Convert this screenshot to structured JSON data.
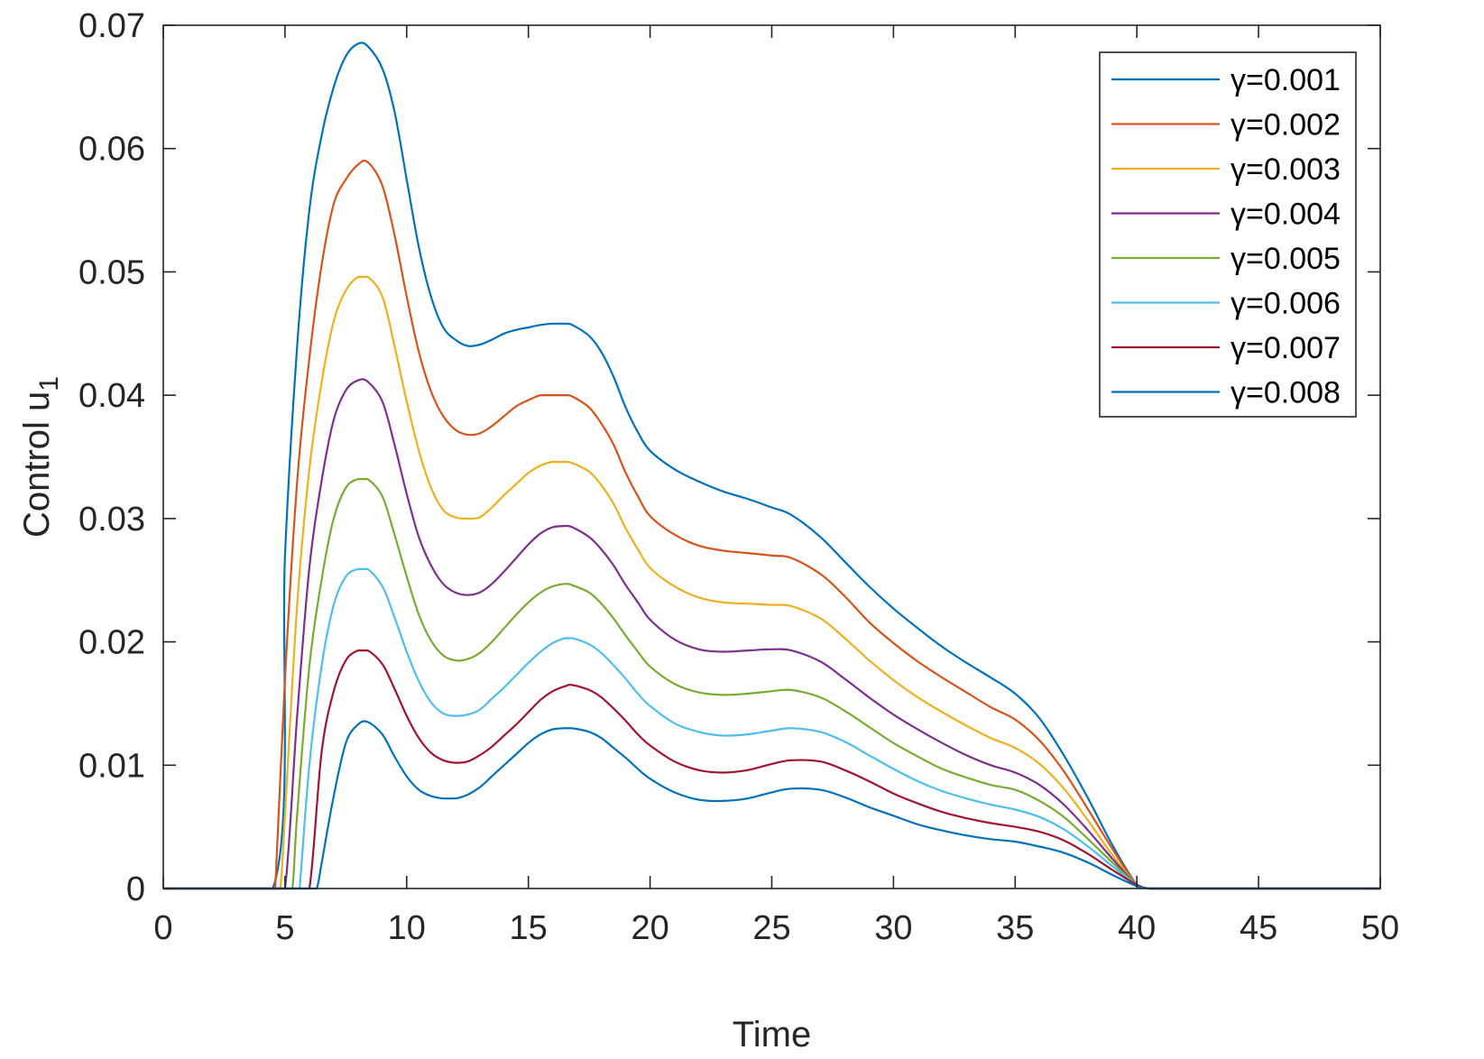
{
  "chart_data": {
    "type": "line",
    "title": "",
    "xlabel": "Time",
    "ylabel": "Control u",
    "ylabel_subscript": "1",
    "xlim": [
      0,
      50
    ],
    "ylim": [
      0,
      0.07
    ],
    "xticks": [
      0,
      5,
      10,
      15,
      20,
      25,
      30,
      35,
      40,
      45,
      50
    ],
    "xtick_labels": [
      "0",
      "5",
      "10",
      "15",
      "20",
      "25",
      "30",
      "35",
      "40",
      "45",
      "50"
    ],
    "yticks": [
      0,
      0.01,
      0.02,
      0.03,
      0.04,
      0.05,
      0.06,
      0.07
    ],
    "ytick_labels": [
      "0",
      "0.01",
      "0.02",
      "0.03",
      "0.04",
      "0.05",
      "0.06",
      "0.07"
    ],
    "grid": false,
    "legend_position": "top-right",
    "x": [
      0,
      4.5,
      5,
      5.5,
      6,
      6.5,
      7,
      7.5,
      8,
      8.4,
      9,
      9.5,
      10,
      10.5,
      11,
      11.5,
      12,
      12.5,
      13,
      13.5,
      14,
      14.5,
      15,
      15.5,
      16,
      16.5,
      16.8,
      17.5,
      18,
      18.5,
      19,
      19.5,
      20,
      21,
      22,
      23,
      24,
      25,
      25.8,
      27,
      28,
      29,
      30,
      31,
      32,
      33,
      34,
      35,
      36,
      37,
      38,
      39,
      40,
      40.5,
      41,
      45,
      50
    ],
    "series": [
      {
        "name": "γ=0.001",
        "color": "#0072BD",
        "start": 4.5,
        "values": [
          0,
          0,
          0.027,
          0.044,
          0.055,
          0.061,
          0.065,
          0.0675,
          0.0685,
          0.0683,
          0.0665,
          0.063,
          0.0575,
          0.052,
          0.048,
          0.0455,
          0.0445,
          0.044,
          0.0441,
          0.0445,
          0.045,
          0.0453,
          0.0455,
          0.0457,
          0.0458,
          0.0458,
          0.0457,
          0.0448,
          0.0435,
          0.0415,
          0.039,
          0.037,
          0.0355,
          0.034,
          0.033,
          0.0322,
          0.0316,
          0.0309,
          0.0303,
          0.0285,
          0.0265,
          0.0245,
          0.0227,
          0.0211,
          0.0196,
          0.0183,
          0.0171,
          0.0158,
          0.0138,
          0.0108,
          0.0073,
          0.0035,
          0.0003,
          0,
          0,
          0,
          0
        ]
      },
      {
        "name": "γ=0.002",
        "color": "#D95319",
        "start": 4.6,
        "values": [
          0,
          0,
          0.017,
          0.033,
          0.043,
          0.0505,
          0.0555,
          0.0575,
          0.0587,
          0.0589,
          0.057,
          0.053,
          0.048,
          0.0435,
          0.0403,
          0.0383,
          0.0372,
          0.0368,
          0.0369,
          0.0375,
          0.0383,
          0.0391,
          0.0396,
          0.04,
          0.04,
          0.04,
          0.0399,
          0.039,
          0.0377,
          0.036,
          0.0337,
          0.0318,
          0.0302,
          0.0287,
          0.0278,
          0.0274,
          0.0272,
          0.027,
          0.0268,
          0.0255,
          0.0237,
          0.0216,
          0.0199,
          0.0184,
          0.0171,
          0.0159,
          0.0147,
          0.0137,
          0.012,
          0.0095,
          0.0064,
          0.0032,
          0.0003,
          0,
          0,
          0,
          0
        ]
      },
      {
        "name": "γ=0.003",
        "color": "#EDB120",
        "start": 4.8,
        "values": [
          0,
          0,
          0.006,
          0.023,
          0.034,
          0.041,
          0.046,
          0.0485,
          0.0496,
          0.0496,
          0.048,
          0.044,
          0.0395,
          0.0355,
          0.0325,
          0.0307,
          0.0301,
          0.03,
          0.0301,
          0.0309,
          0.0319,
          0.0328,
          0.0337,
          0.0343,
          0.0346,
          0.0346,
          0.0345,
          0.0338,
          0.0327,
          0.0312,
          0.0292,
          0.0275,
          0.026,
          0.0245,
          0.0236,
          0.0232,
          0.0231,
          0.023,
          0.0229,
          0.0219,
          0.0203,
          0.0185,
          0.0169,
          0.0155,
          0.0143,
          0.0132,
          0.0122,
          0.0114,
          0.0101,
          0.0081,
          0.0055,
          0.0027,
          0.0003,
          0,
          0,
          0,
          0
        ]
      },
      {
        "name": "γ=0.004",
        "color": "#7E2F8E",
        "start": 5.0,
        "values": [
          0,
          0,
          0,
          0.014,
          0.026,
          0.033,
          0.038,
          0.0404,
          0.0412,
          0.0411,
          0.0395,
          0.036,
          0.032,
          0.0285,
          0.0262,
          0.0247,
          0.024,
          0.0238,
          0.024,
          0.0247,
          0.0257,
          0.0268,
          0.0279,
          0.0288,
          0.0293,
          0.0294,
          0.0293,
          0.0285,
          0.0275,
          0.0262,
          0.0246,
          0.0232,
          0.0218,
          0.0202,
          0.0194,
          0.0192,
          0.0193,
          0.0194,
          0.0193,
          0.0184,
          0.017,
          0.0155,
          0.0141,
          0.0129,
          0.0118,
          0.0108,
          0.01,
          0.0094,
          0.0084,
          0.0068,
          0.0047,
          0.0024,
          0.0003,
          0,
          0,
          0,
          0
        ]
      },
      {
        "name": "γ=0.005",
        "color": "#77AC30",
        "start": 5.3,
        "values": [
          0,
          0,
          0,
          0.006,
          0.018,
          0.025,
          0.03,
          0.0325,
          0.0332,
          0.0332,
          0.0318,
          0.0287,
          0.0253,
          0.0222,
          0.0201,
          0.0189,
          0.0185,
          0.0186,
          0.0191,
          0.02,
          0.0211,
          0.0222,
          0.0232,
          0.024,
          0.0245,
          0.0247,
          0.0246,
          0.024,
          0.0231,
          0.0219,
          0.0205,
          0.0192,
          0.018,
          0.0166,
          0.0159,
          0.0157,
          0.0158,
          0.016,
          0.0161,
          0.0155,
          0.0144,
          0.0131,
          0.0118,
          0.0107,
          0.0097,
          0.009,
          0.0084,
          0.008,
          0.0071,
          0.0058,
          0.004,
          0.0021,
          0.0003,
          0,
          0,
          0,
          0
        ]
      },
      {
        "name": "γ=0.006",
        "color": "#4DBEEE",
        "start": 5.6,
        "values": [
          0,
          0,
          0,
          0,
          0.01,
          0.018,
          0.023,
          0.0253,
          0.0259,
          0.0259,
          0.0245,
          0.022,
          0.0192,
          0.0168,
          0.0151,
          0.0142,
          0.014,
          0.0141,
          0.0145,
          0.0154,
          0.0163,
          0.0173,
          0.0183,
          0.0192,
          0.0199,
          0.0203,
          0.0203,
          0.0198,
          0.0191,
          0.0181,
          0.017,
          0.0158,
          0.0148,
          0.0134,
          0.0127,
          0.0124,
          0.0125,
          0.0128,
          0.013,
          0.0127,
          0.0119,
          0.0108,
          0.0097,
          0.0087,
          0.0079,
          0.0073,
          0.0068,
          0.0064,
          0.0058,
          0.0048,
          0.0034,
          0.0018,
          0.0003,
          0,
          0,
          0,
          0
        ]
      },
      {
        "name": "γ=0.007",
        "color": "#A2142F",
        "start": 6.0,
        "values": [
          0,
          0,
          0,
          0,
          0,
          0.011,
          0.016,
          0.0185,
          0.0193,
          0.0193,
          0.0182,
          0.0162,
          0.014,
          0.0122,
          0.011,
          0.0104,
          0.0102,
          0.0103,
          0.0108,
          0.0115,
          0.0124,
          0.0133,
          0.0143,
          0.0153,
          0.016,
          0.0164,
          0.0165,
          0.0161,
          0.0155,
          0.0146,
          0.0136,
          0.0125,
          0.0116,
          0.0103,
          0.0096,
          0.0094,
          0.0096,
          0.0101,
          0.0104,
          0.0103,
          0.0096,
          0.0087,
          0.0077,
          0.0069,
          0.0062,
          0.0057,
          0.0053,
          0.005,
          0.0046,
          0.0039,
          0.0028,
          0.0015,
          0.0003,
          0,
          0,
          0,
          0
        ]
      },
      {
        "name": "γ=0.008",
        "color": "#0072BD",
        "start": 6.3,
        "values": [
          0,
          0,
          0,
          0,
          0,
          0.002,
          0.0075,
          0.0118,
          0.0133,
          0.0135,
          0.0125,
          0.0107,
          0.0091,
          0.008,
          0.0075,
          0.0073,
          0.0073,
          0.0076,
          0.0082,
          0.0091,
          0.01,
          0.0109,
          0.0118,
          0.0125,
          0.0129,
          0.013,
          0.013,
          0.0127,
          0.0122,
          0.0114,
          0.0106,
          0.0097,
          0.0089,
          0.0078,
          0.0072,
          0.0071,
          0.0073,
          0.0078,
          0.0081,
          0.008,
          0.0074,
          0.0066,
          0.0059,
          0.0052,
          0.0047,
          0.0043,
          0.004,
          0.0038,
          0.0034,
          0.0029,
          0.0021,
          0.0011,
          0.0002,
          0,
          0,
          0,
          0
        ]
      }
    ]
  }
}
